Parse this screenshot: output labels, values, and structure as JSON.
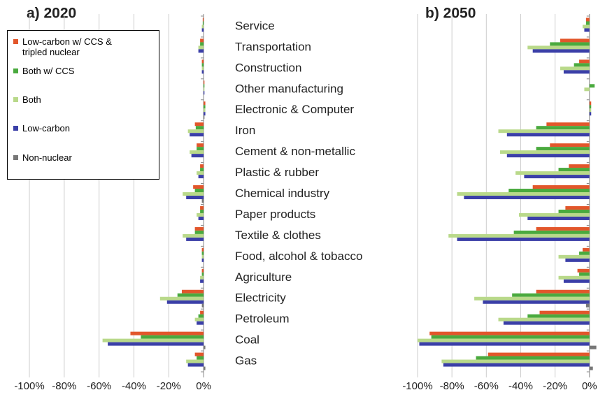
{
  "chart_data": [
    {
      "type": "bar",
      "orientation": "horizontal",
      "title": "a) 2020",
      "categories": [
        "Service",
        "Transportation",
        "Construction",
        "Other manufacturing",
        "Electronic & Computer",
        "Iron",
        "Cement & non-metallic",
        "Plastic & rubber",
        "Chemical industry",
        "Paper products",
        "Textile & clothes",
        "Food, alcohol & tobacco",
        "Agriculture",
        "Electricity",
        "Petroleum",
        "Coal",
        "Gas"
      ],
      "series": [
        {
          "name": "Low-carbon w/ CCS & tripled nuclear",
          "color": "#e2562b",
          "values": [
            -0.5,
            -2,
            -1,
            0.5,
            1,
            -5,
            -4,
            -2,
            -6,
            -2,
            -5,
            -1,
            -1,
            -12.5,
            -2,
            -42,
            -5
          ]
        },
        {
          "name": "Both w/ CCS",
          "color": "#4aaa3e",
          "values": [
            -0.5,
            -2,
            -1,
            0.5,
            1,
            -4.5,
            -4,
            -2,
            -5,
            -2,
            -5,
            -1,
            -1,
            -15,
            -3,
            -36,
            -4
          ]
        },
        {
          "name": "Both",
          "color": "#b9d98a",
          "values": [
            -1,
            -3,
            -1,
            0.5,
            1,
            -9,
            -8,
            -4,
            -12,
            -4,
            -12,
            -1,
            -2,
            -25,
            -5,
            -58,
            -10
          ]
        },
        {
          "name": "Low-carbon",
          "color": "#3b3fa8",
          "values": [
            -1,
            -3,
            -1,
            0.5,
            1,
            -8,
            -7,
            -3,
            -10,
            -3,
            -10,
            -1,
            -2,
            -21,
            -4,
            -55,
            -9
          ]
        },
        {
          "name": "Non-nuclear",
          "color": "#777777",
          "values": [
            0,
            0,
            0,
            0,
            0.5,
            0,
            0,
            0,
            -1,
            0,
            0,
            0,
            0,
            -1,
            0,
            1,
            1
          ]
        }
      ],
      "xlim": [
        -100,
        10
      ],
      "xticks": [
        {
          "value": -100,
          "label": "-100%"
        },
        {
          "value": -80,
          "label": "-80%"
        },
        {
          "value": -60,
          "label": "-60%"
        },
        {
          "value": -40,
          "label": "-40%"
        },
        {
          "value": -20,
          "label": "-20%"
        },
        {
          "value": 0,
          "label": "0%"
        }
      ],
      "grid": true,
      "legend": "top-left"
    },
    {
      "type": "bar",
      "orientation": "horizontal",
      "title": "b) 2050",
      "series": [
        {
          "values": [
            -2,
            -17,
            -6,
            0,
            1,
            -25,
            -23,
            -12,
            -33,
            -14,
            -31,
            -4,
            -7,
            -31,
            -29,
            -93,
            -59
          ]
        },
        {
          "values": [
            -2,
            -23,
            -9,
            3,
            1,
            -31,
            -31,
            -18,
            -47,
            -18,
            -44,
            -6,
            -6,
            -45,
            -36,
            -92,
            -66
          ]
        },
        {
          "values": [
            -4,
            -36,
            -17,
            -3,
            1,
            -53,
            -52,
            -43,
            -77,
            -41,
            -82,
            -18,
            -18,
            -67,
            -53,
            -100,
            -86
          ]
        },
        {
          "values": [
            -3,
            -33,
            -15,
            0,
            1,
            -48,
            -48,
            -38,
            -73,
            -36,
            -77,
            -14,
            -15,
            -62,
            -50,
            -99,
            -85
          ]
        },
        {
          "values": [
            0,
            0,
            0,
            0,
            0,
            0,
            0,
            0,
            0,
            0,
            0,
            0,
            0,
            -2,
            0,
            4,
            2
          ]
        }
      ],
      "xlim": [
        -100,
        7
      ],
      "xticks": [
        {
          "value": -100,
          "label": "-100%"
        },
        {
          "value": -80,
          "label": "-80%"
        },
        {
          "value": -60,
          "label": "-60%"
        },
        {
          "value": -40,
          "label": "-40%"
        },
        {
          "value": -20,
          "label": "-20%"
        },
        {
          "value": 0,
          "label": "0%"
        }
      ],
      "grid": true
    }
  ]
}
